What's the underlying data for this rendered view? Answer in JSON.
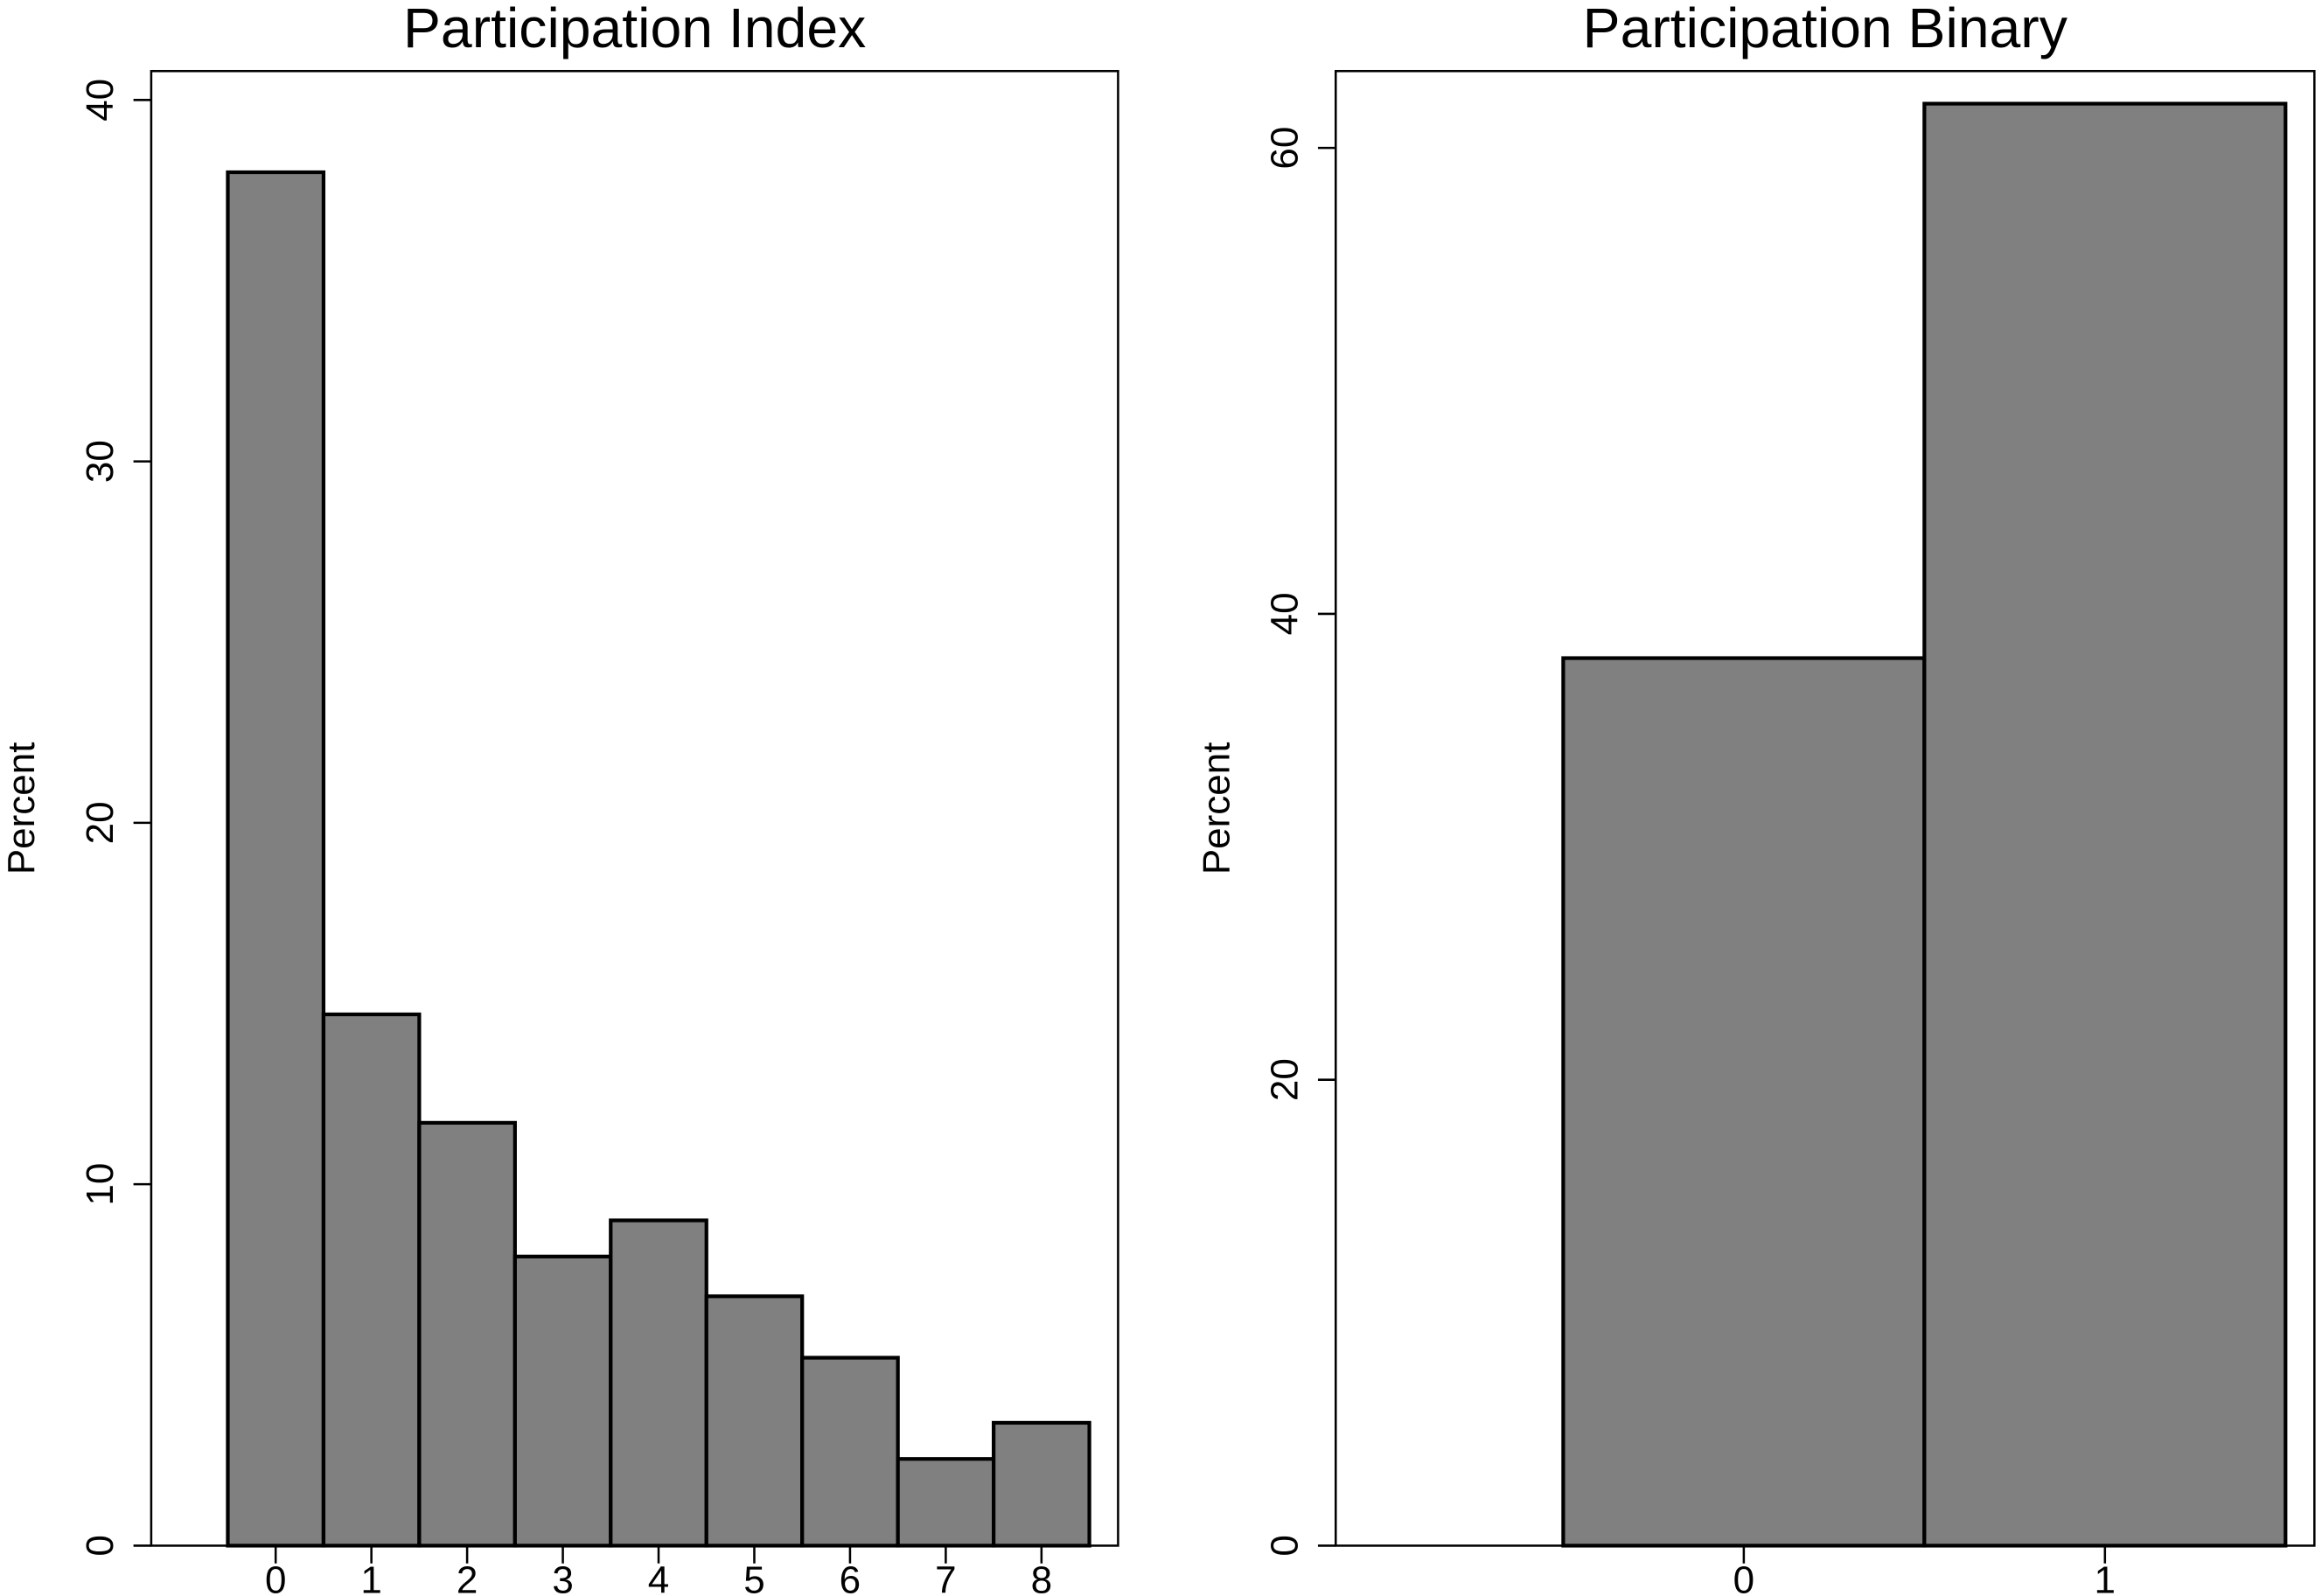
{
  "chart_data": [
    {
      "type": "histogram",
      "title": "Participation Index",
      "ylabel": "Percent",
      "bins": [
        -0.5,
        0.5,
        1.5,
        2.5,
        3.5,
        4.5,
        5.5,
        6.5,
        7.5,
        8.5
      ],
      "values": [
        38.0,
        14.7,
        11.7,
        8.0,
        9.0,
        6.9,
        5.2,
        2.4,
        3.4
      ],
      "color": "#808080",
      "xlim": [
        -1.3,
        8.8
      ],
      "xticks": [
        0,
        1,
        2,
        3,
        4,
        5,
        6,
        7,
        8
      ],
      "ylim": [
        0,
        40.8
      ],
      "yticks": [
        0,
        10,
        20,
        30,
        40
      ]
    },
    {
      "type": "histogram",
      "title": "Participation Binary",
      "ylabel": "Percent",
      "bins": [
        -0.5,
        0.5,
        1.5
      ],
      "values": [
        38.1,
        61.9
      ],
      "color": "#808080",
      "xlim": [
        -1.13,
        1.58
      ],
      "xticks": [
        0,
        1
      ],
      "ylim": [
        0,
        63.3
      ],
      "yticks": [
        0,
        20,
        40,
        60
      ]
    }
  ]
}
